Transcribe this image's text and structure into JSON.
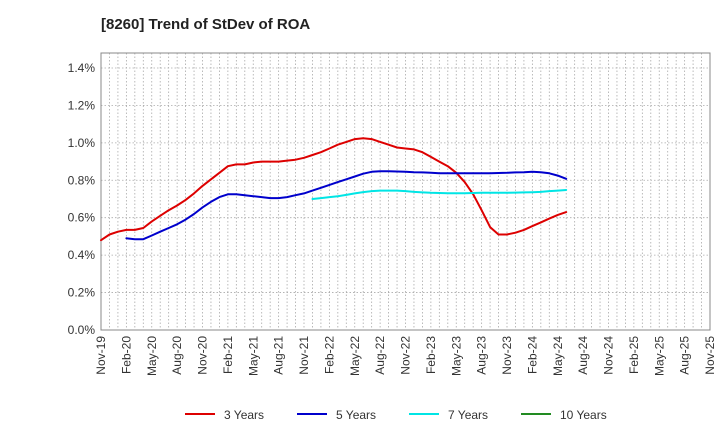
{
  "chart_data": {
    "type": "line",
    "title": "[8260]  Trend of StDev of ROA",
    "xlabel": "",
    "ylabel": "",
    "x_tick_labels": [
      "Nov-19",
      "Feb-20",
      "May-20",
      "Aug-20",
      "Nov-20",
      "Feb-21",
      "May-21",
      "Aug-21",
      "Nov-21",
      "Feb-22",
      "May-22",
      "Aug-22",
      "Nov-22",
      "Feb-23",
      "May-23",
      "Aug-23",
      "Nov-23",
      "Feb-24",
      "May-24",
      "Aug-24",
      "Nov-24",
      "Feb-25",
      "May-25",
      "Aug-25",
      "Nov-25"
    ],
    "y_tick_labels": [
      "0.0%",
      "0.2%",
      "0.4%",
      "0.6%",
      "0.8%",
      "1.0%",
      "1.2%",
      "1.4%"
    ],
    "y_ticks": [
      0,
      0.2,
      0.4,
      0.6,
      0.8,
      1.0,
      1.2,
      1.4
    ],
    "ylim": [
      0,
      1.48
    ],
    "xlim": [
      0,
      72
    ],
    "grid": true,
    "legend_position": "bottom",
    "series": [
      {
        "name": "3 Years",
        "color": "#dd0000",
        "points": [
          [
            0,
            0.48
          ],
          [
            1,
            0.51
          ],
          [
            2,
            0.525
          ],
          [
            3,
            0.535
          ],
          [
            4,
            0.535
          ],
          [
            5,
            0.545
          ],
          [
            6,
            0.58
          ],
          [
            7,
            0.61
          ],
          [
            8,
            0.64
          ],
          [
            9,
            0.665
          ],
          [
            10,
            0.695
          ],
          [
            11,
            0.73
          ],
          [
            12,
            0.77
          ],
          [
            13,
            0.805
          ],
          [
            14,
            0.84
          ],
          [
            15,
            0.875
          ],
          [
            16,
            0.885
          ],
          [
            17,
            0.885
          ],
          [
            18,
            0.895
          ],
          [
            19,
            0.9
          ],
          [
            20,
            0.9
          ],
          [
            21,
            0.9
          ],
          [
            22,
            0.905
          ],
          [
            23,
            0.91
          ],
          [
            24,
            0.92
          ],
          [
            25,
            0.935
          ],
          [
            26,
            0.95
          ],
          [
            27,
            0.97
          ],
          [
            28,
            0.99
          ],
          [
            29,
            1.005
          ],
          [
            30,
            1.02
          ],
          [
            31,
            1.025
          ],
          [
            32,
            1.02
          ],
          [
            33,
            1.005
          ],
          [
            34,
            0.99
          ],
          [
            35,
            0.975
          ],
          [
            36,
            0.97
          ],
          [
            37,
            0.965
          ],
          [
            38,
            0.95
          ],
          [
            39,
            0.925
          ],
          [
            40,
            0.9
          ],
          [
            41,
            0.875
          ],
          [
            42,
            0.84
          ],
          [
            43,
            0.79
          ],
          [
            44,
            0.725
          ],
          [
            45,
            0.64
          ],
          [
            46,
            0.55
          ],
          [
            47,
            0.51
          ],
          [
            48,
            0.51
          ],
          [
            49,
            0.52
          ],
          [
            50,
            0.535
          ],
          [
            51,
            0.555
          ],
          [
            52,
            0.575
          ],
          [
            53,
            0.595
          ],
          [
            54,
            0.615
          ],
          [
            55,
            0.63
          ]
        ]
      },
      {
        "name": "5 Years",
        "color": "#0000cc",
        "points": [
          [
            3,
            0.49
          ],
          [
            4,
            0.485
          ],
          [
            5,
            0.485
          ],
          [
            6,
            0.505
          ],
          [
            7,
            0.525
          ],
          [
            8,
            0.545
          ],
          [
            9,
            0.565
          ],
          [
            10,
            0.59
          ],
          [
            11,
            0.62
          ],
          [
            12,
            0.655
          ],
          [
            13,
            0.685
          ],
          [
            14,
            0.71
          ],
          [
            15,
            0.725
          ],
          [
            16,
            0.725
          ],
          [
            17,
            0.72
          ],
          [
            18,
            0.715
          ],
          [
            19,
            0.71
          ],
          [
            20,
            0.705
          ],
          [
            21,
            0.705
          ],
          [
            22,
            0.71
          ],
          [
            23,
            0.72
          ],
          [
            24,
            0.73
          ],
          [
            25,
            0.745
          ],
          [
            26,
            0.76
          ],
          [
            27,
            0.775
          ],
          [
            28,
            0.79
          ],
          [
            29,
            0.805
          ],
          [
            30,
            0.82
          ],
          [
            31,
            0.835
          ],
          [
            32,
            0.845
          ],
          [
            33,
            0.848
          ],
          [
            34,
            0.848
          ],
          [
            35,
            0.847
          ],
          [
            36,
            0.845
          ],
          [
            37,
            0.843
          ],
          [
            38,
            0.842
          ],
          [
            39,
            0.84
          ],
          [
            40,
            0.838
          ],
          [
            41,
            0.837
          ],
          [
            42,
            0.837
          ],
          [
            43,
            0.837
          ],
          [
            44,
            0.837
          ],
          [
            45,
            0.838
          ],
          [
            46,
            0.838
          ],
          [
            47,
            0.839
          ],
          [
            48,
            0.84
          ],
          [
            49,
            0.842
          ],
          [
            50,
            0.843
          ],
          [
            51,
            0.845
          ],
          [
            52,
            0.843
          ],
          [
            53,
            0.837
          ],
          [
            54,
            0.825
          ],
          [
            55,
            0.808
          ]
        ]
      },
      {
        "name": "7 Years",
        "color": "#00e5e5",
        "points": [
          [
            25,
            0.7
          ],
          [
            26,
            0.705
          ],
          [
            27,
            0.71
          ],
          [
            28,
            0.715
          ],
          [
            29,
            0.722
          ],
          [
            30,
            0.73
          ],
          [
            31,
            0.737
          ],
          [
            32,
            0.742
          ],
          [
            33,
            0.745
          ],
          [
            34,
            0.745
          ],
          [
            35,
            0.745
          ],
          [
            36,
            0.742
          ],
          [
            37,
            0.738
          ],
          [
            38,
            0.735
          ],
          [
            39,
            0.733
          ],
          [
            40,
            0.732
          ],
          [
            41,
            0.731
          ],
          [
            42,
            0.731
          ],
          [
            43,
            0.731
          ],
          [
            44,
            0.732
          ],
          [
            45,
            0.733
          ],
          [
            46,
            0.733
          ],
          [
            47,
            0.733
          ],
          [
            48,
            0.733
          ],
          [
            49,
            0.734
          ],
          [
            50,
            0.735
          ],
          [
            51,
            0.736
          ],
          [
            52,
            0.738
          ],
          [
            53,
            0.742
          ],
          [
            54,
            0.745
          ],
          [
            55,
            0.748
          ]
        ]
      },
      {
        "name": "10 Years",
        "color": "#228b22",
        "points": []
      }
    ]
  }
}
